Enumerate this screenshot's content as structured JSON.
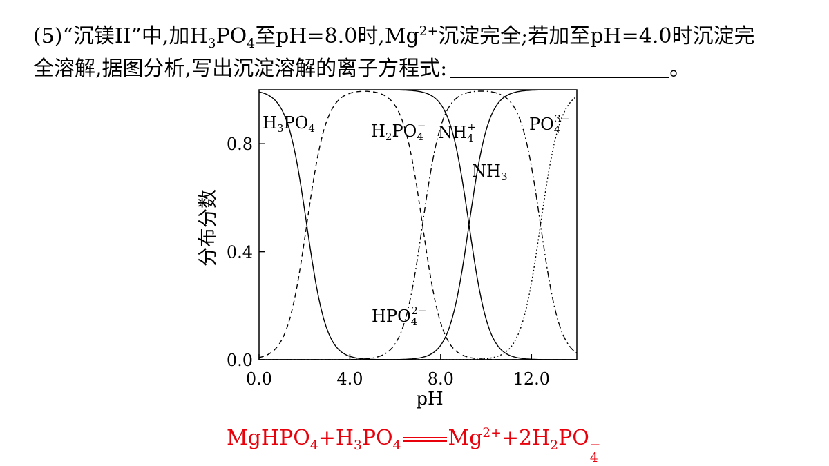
{
  "question": {
    "part_no": "(5)",
    "quote_open": "“",
    "quote_name": "沉镁II",
    "quote_close": "”",
    "text_a": "中,加",
    "h3po4_H": "H",
    "h3po4_3": "3",
    "h3po4_PO": "PO",
    "h3po4_4": "4",
    "text_b": "至pH=8.0时,Mg",
    "mg_charge": "2+",
    "text_c": "沉淀完全;若加至pH=4.0时沉淀完",
    "line2": "全溶解,据图分析,写出沉淀溶解的离子方程式:",
    "line2_end": "。"
  },
  "chart_data": {
    "type": "line",
    "xlabel": "pH",
    "ylabel": "分布分数",
    "xlim": [
      0,
      14
    ],
    "ylim": [
      0,
      1
    ],
    "x_ticks": [
      "0.0",
      "4.0",
      "8.0",
      "12.0"
    ],
    "y_ticks": [
      "0.0",
      "0.4",
      "0.8"
    ],
    "x_tick_values": [
      0,
      4,
      8,
      12
    ],
    "y_tick_values": [
      0,
      0.4,
      0.8
    ],
    "pka": {
      "H3PO4": 2.1,
      "H2PO4-": 7.2,
      "HPO4 2-": 12.4,
      "NH4+": 9.25
    },
    "series": [
      {
        "name": "H3PO4",
        "style": "solid",
        "points": [
          [
            0,
            0.99
          ],
          [
            1,
            0.93
          ],
          [
            1.5,
            0.8
          ],
          [
            2.1,
            0.5
          ],
          [
            2.8,
            0.17
          ],
          [
            3.5,
            0.04
          ],
          [
            4.5,
            0.004
          ],
          [
            5,
            0
          ]
        ]
      },
      {
        "name": "H2PO4-",
        "style": "dashed",
        "points": [
          [
            0,
            0.01
          ],
          [
            1,
            0.07
          ],
          [
            2.1,
            0.5
          ],
          [
            3,
            0.88
          ],
          [
            4.6,
            1.0
          ],
          [
            6,
            0.94
          ],
          [
            7.2,
            0.5
          ],
          [
            8,
            0.14
          ],
          [
            9,
            0.016
          ],
          [
            10,
            0
          ]
        ]
      },
      {
        "name": "HPO4 2-",
        "style": "dashdot",
        "points": [
          [
            4.5,
            0.002
          ],
          [
            5.5,
            0.02
          ],
          [
            6.5,
            0.17
          ],
          [
            7.2,
            0.5
          ],
          [
            8.2,
            0.91
          ],
          [
            9.8,
            1.0
          ],
          [
            11,
            0.96
          ],
          [
            12.4,
            0.5
          ],
          [
            13.2,
            0.14
          ],
          [
            14,
            0.025
          ]
        ]
      },
      {
        "name": "NH4+",
        "style": "solid",
        "points": [
          [
            0,
            1.0
          ],
          [
            7,
            0.99
          ],
          [
            8,
            0.95
          ],
          [
            8.6,
            0.82
          ],
          [
            9.25,
            0.5
          ],
          [
            10,
            0.15
          ],
          [
            10.6,
            0.04
          ],
          [
            11.5,
            0.006
          ],
          [
            12.5,
            0
          ]
        ]
      },
      {
        "name": "NH3",
        "style": "solid",
        "points": [
          [
            6,
            0.001
          ],
          [
            7,
            0.01
          ],
          [
            8,
            0.05
          ],
          [
            8.6,
            0.18
          ],
          [
            9.25,
            0.5
          ],
          [
            10,
            0.85
          ],
          [
            10.6,
            0.96
          ],
          [
            11.5,
            0.994
          ],
          [
            12.5,
            1.0
          ]
        ]
      },
      {
        "name": "PO4 3-",
        "style": "dotted",
        "points": [
          [
            10,
            0.004
          ],
          [
            11,
            0.04
          ],
          [
            11.8,
            0.2
          ],
          [
            12.4,
            0.5
          ],
          [
            13,
            0.8
          ],
          [
            13.5,
            0.92
          ],
          [
            14,
            0.975
          ]
        ]
      }
    ],
    "labels": {
      "h3po4": {
        "main": "H",
        "sub1": "3",
        "main2": "PO",
        "sub2": "4"
      },
      "h2po4": {
        "main": "H",
        "sub1": "2",
        "main2": "PO",
        "sub2": "4",
        "sup": "−"
      },
      "nh4": {
        "main": "NH",
        "sub": "4",
        "sup": "+"
      },
      "nh3": {
        "main": "NH",
        "sub": "3"
      },
      "hpo4": {
        "main": "HPO",
        "sub": "4",
        "sup": "2−"
      },
      "po4": {
        "main": "PO",
        "sub": "4",
        "sup": "3−"
      }
    }
  },
  "answer": {
    "part1": "MgHPO",
    "sub1": "4",
    "part2": "+H",
    "sub2": "3",
    "part3": "PO",
    "sub3": "4",
    "part4": "Mg",
    "charge": "2+",
    "part5": "+2H",
    "sub4": "2",
    "part6": "PO",
    "sub5": "4",
    "charge2": "−"
  }
}
